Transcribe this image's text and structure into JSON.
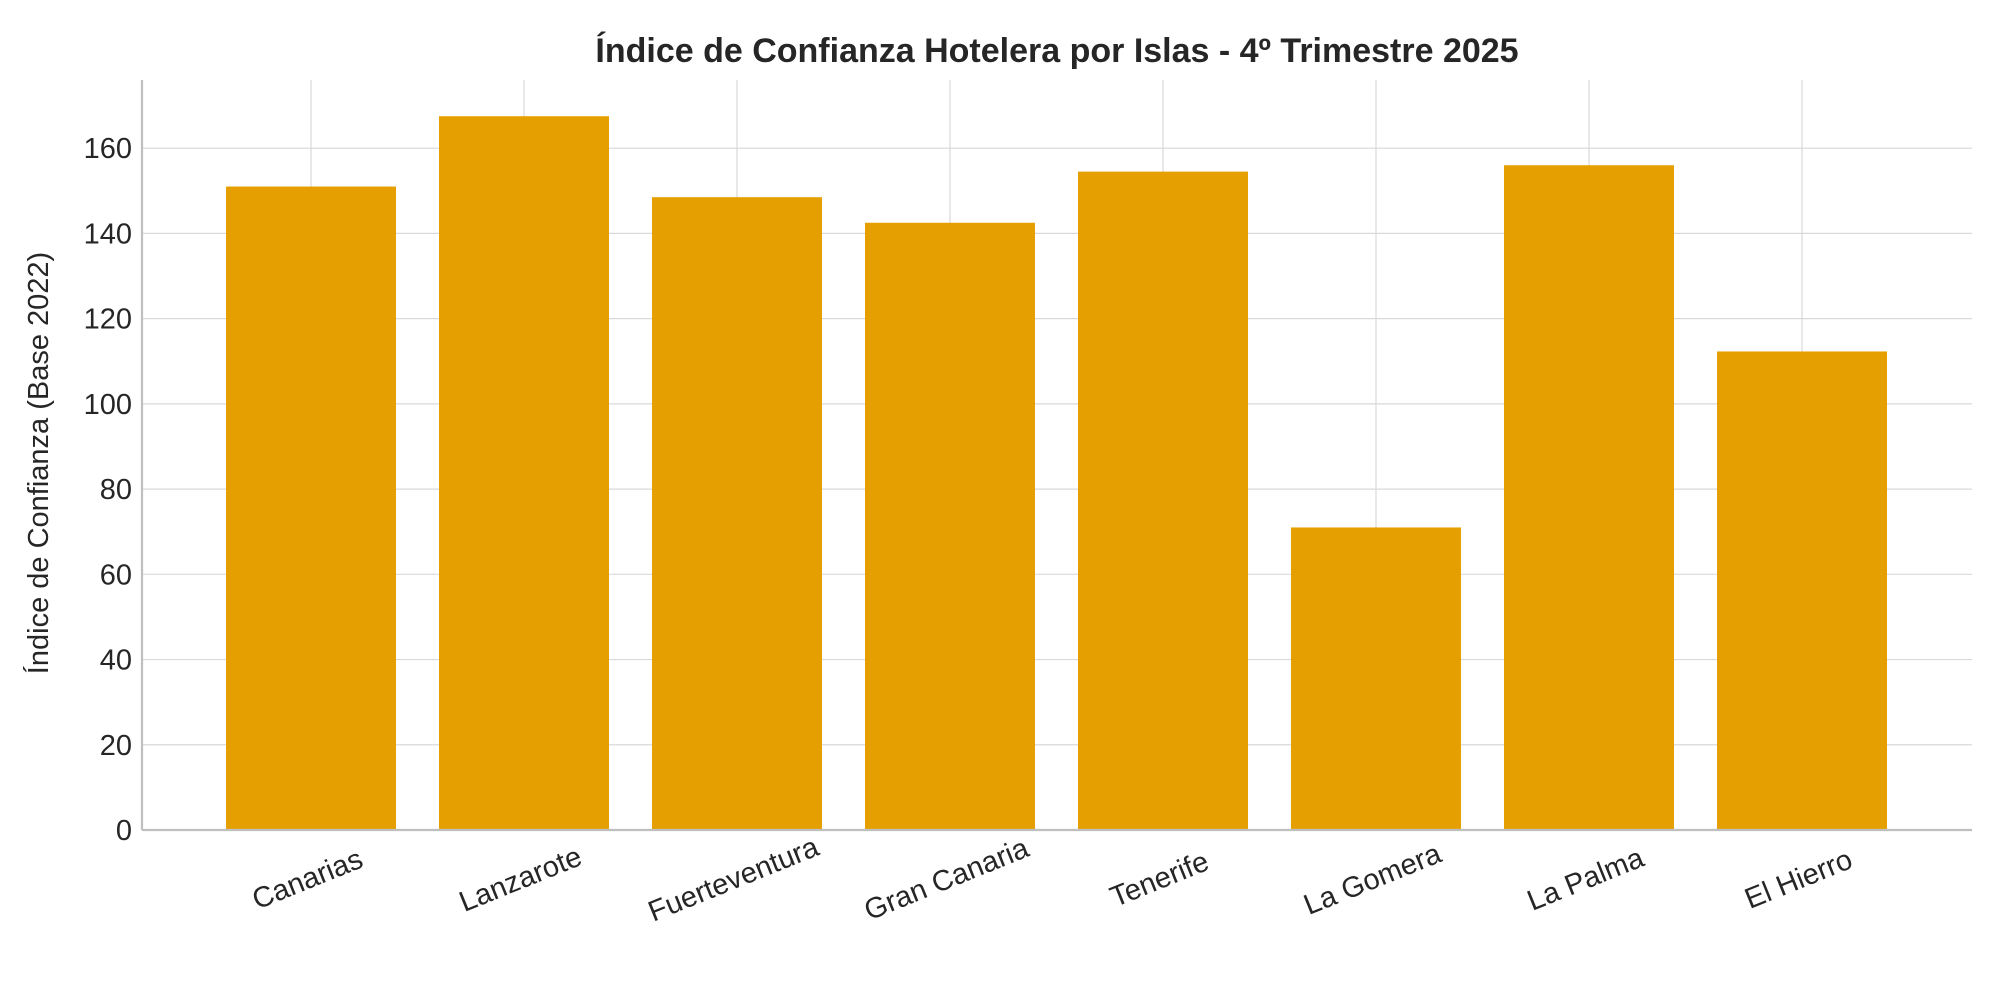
{
  "chart_data": {
    "type": "bar",
    "title": "Índice de Confianza Hotelera por Islas - 4º Trimestre 2025",
    "xlabel": "",
    "ylabel": "Índice de Confianza (Base 2022)",
    "categories": [
      "Canarias",
      "Lanzarote",
      "Fuerteventura",
      "Gran Canaria",
      "Tenerife",
      "La Gomera",
      "La Palma",
      "El Hierro"
    ],
    "values": [
      151,
      167.5,
      148.5,
      142.5,
      154.5,
      71,
      156,
      112.3
    ],
    "yticks": [
      0,
      20,
      40,
      60,
      80,
      100,
      120,
      140,
      160
    ],
    "ylim": [
      0,
      176
    ],
    "bar_color": "#E69F00",
    "grid": true
  }
}
